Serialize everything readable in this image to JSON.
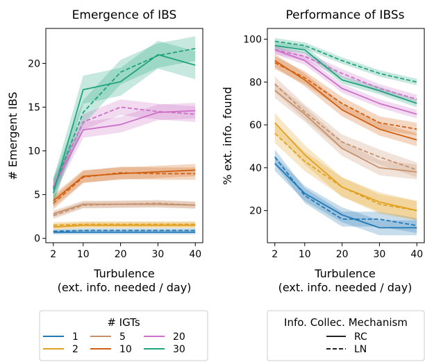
{
  "colors": {
    "1": "#1f78b4",
    "2": "#e1a020",
    "5": "#c6906a",
    "10": "#d06010",
    "20": "#cc6fc8",
    "30": "#1fa37d"
  },
  "legends": {
    "igts": {
      "title": "# IGTs",
      "entries": [
        {
          "key": "1",
          "label": "1"
        },
        {
          "key": "2",
          "label": "2"
        },
        {
          "key": "5",
          "label": "5"
        },
        {
          "key": "10",
          "label": "10"
        },
        {
          "key": "20",
          "label": "20"
        },
        {
          "key": "30",
          "label": "30"
        }
      ]
    },
    "mechanism": {
      "title": "Info. Collec. Mechanism",
      "entries": [
        {
          "label": "RC",
          "dash": "solid"
        },
        {
          "label": "LN",
          "dash": "dashed"
        }
      ]
    }
  },
  "chart_data": [
    {
      "type": "line",
      "title": "Emergence of IBS",
      "xlabel": "Turbulence\n(ext. info. needed / day)",
      "ylabel": "# Emergent IBS",
      "x": [
        2,
        10,
        20,
        30,
        40
      ],
      "xticks": [
        2,
        10,
        20,
        30,
        40
      ],
      "yticks": [
        0,
        5,
        10,
        15,
        20
      ],
      "xlim": [
        0,
        42
      ],
      "ylim": [
        -0.5,
        24
      ],
      "series": [
        {
          "igt": "1",
          "mech": "RC",
          "values": [
            0.7,
            0.7,
            0.7,
            0.7,
            0.7
          ],
          "band": 0.25
        },
        {
          "igt": "1",
          "mech": "LN",
          "values": [
            0.8,
            0.9,
            0.9,
            0.9,
            0.9
          ],
          "band": 0.25
        },
        {
          "igt": "2",
          "mech": "RC",
          "values": [
            1.3,
            1.5,
            1.5,
            1.5,
            1.5
          ],
          "band": 0.35
        },
        {
          "igt": "2",
          "mech": "LN",
          "values": [
            1.5,
            1.6,
            1.6,
            1.6,
            1.6
          ],
          "band": 0.35
        },
        {
          "igt": "5",
          "mech": "RC",
          "values": [
            2.8,
            3.9,
            3.9,
            3.9,
            3.8
          ],
          "band": 0.4
        },
        {
          "igt": "5",
          "mech": "LN",
          "values": [
            2.6,
            3.8,
            3.9,
            4.0,
            3.8
          ],
          "band": 0.4
        },
        {
          "igt": "10",
          "mech": "RC",
          "values": [
            4.3,
            7.1,
            7.4,
            7.6,
            7.8
          ],
          "band": 0.7
        },
        {
          "igt": "10",
          "mech": "LN",
          "values": [
            4.0,
            7.0,
            7.5,
            7.4,
            7.4
          ],
          "band": 0.7
        },
        {
          "igt": "20",
          "mech": "RC",
          "values": [
            5.8,
            12.4,
            13.0,
            14.4,
            14.6
          ],
          "band": 0.9
        },
        {
          "igt": "20",
          "mech": "LN",
          "values": [
            5.9,
            13.3,
            15.0,
            14.5,
            14.2
          ],
          "band": 0.9
        },
        {
          "igt": "30",
          "mech": "RC",
          "values": [
            5.2,
            17.0,
            17.9,
            21.0,
            19.8
          ],
          "band": 1.6
        },
        {
          "igt": "30",
          "mech": "LN",
          "values": [
            5.6,
            14.4,
            19.0,
            20.9,
            21.7
          ],
          "band": 1.4
        }
      ]
    },
    {
      "type": "line",
      "title": "Performance of IBSs",
      "xlabel": "Turbulence\n(ext. info. needed / day)",
      "ylabel": "% ext. info. found",
      "x": [
        2,
        10,
        20,
        30,
        40
      ],
      "xticks": [
        2,
        10,
        20,
        30,
        40
      ],
      "yticks": [
        20,
        40,
        60,
        80,
        100
      ],
      "xlim": [
        0,
        42
      ],
      "ylim": [
        5,
        105
      ],
      "series": [
        {
          "igt": "1",
          "mech": "RC",
          "values": [
            42,
            28,
            18,
            12,
            12
          ],
          "band": 3.5
        },
        {
          "igt": "1",
          "mech": "LN",
          "values": [
            45,
            27,
            16,
            16,
            13
          ],
          "band": 3.5
        },
        {
          "igt": "2",
          "mech": "RC",
          "values": [
            61,
            46,
            31,
            24,
            20
          ],
          "band": 4.5
        },
        {
          "igt": "2",
          "mech": "LN",
          "values": [
            56,
            43,
            31,
            23,
            20
          ],
          "band": 4.5
        },
        {
          "igt": "5",
          "mech": "RC",
          "values": [
            76,
            65,
            49,
            40,
            38
          ],
          "band": 3.5
        },
        {
          "igt": "5",
          "mech": "LN",
          "values": [
            79,
            66,
            52,
            45,
            39
          ],
          "band": 3.5
        },
        {
          "igt": "10",
          "mech": "RC",
          "values": [
            90,
            81,
            67,
            58,
            53
          ],
          "band": 3
        },
        {
          "igt": "10",
          "mech": "LN",
          "values": [
            89,
            82,
            70,
            61,
            58
          ],
          "band": 3
        },
        {
          "igt": "20",
          "mech": "RC",
          "values": [
            95,
            90,
            77,
            70,
            65
          ],
          "band": 2
        },
        {
          "igt": "20",
          "mech": "LN",
          "values": [
            95,
            92,
            84,
            77,
            72
          ],
          "band": 2
        },
        {
          "igt": "30",
          "mech": "RC",
          "values": [
            97,
            95,
            81,
            76,
            70
          ],
          "band": 1.8
        },
        {
          "igt": "30",
          "mech": "LN",
          "values": [
            99,
            97,
            90,
            84,
            80
          ],
          "band": 1.5
        }
      ]
    }
  ]
}
